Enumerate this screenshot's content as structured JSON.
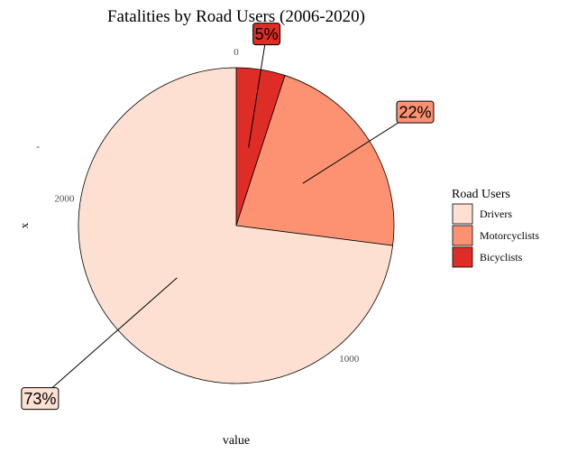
{
  "chart_data": {
    "type": "pie",
    "title": "Fatalities by Road Users (2006-2020)",
    "xlabel": "value",
    "ylabel": "x",
    "y_tick_label": "-",
    "radial_ticks": [
      {
        "value": 0,
        "label": "0"
      },
      {
        "value": 1000,
        "label": "1000"
      },
      {
        "value": 2000,
        "label": "2000"
      }
    ],
    "total": 2580,
    "slices": [
      {
        "name": "Bicyclists",
        "value": 129,
        "label": "5%",
        "color": "#de2d26"
      },
      {
        "name": "Motorcyclists",
        "value": 568,
        "label": "22%",
        "color": "#fc9272"
      },
      {
        "name": "Drivers",
        "value": 1883,
        "label": "73%",
        "color": "#fee0d2"
      }
    ],
    "legend": {
      "title": "Road Users",
      "position": "right",
      "entries": [
        {
          "label": "Drivers",
          "color": "#fee0d2"
        },
        {
          "label": "Motorcyclists",
          "color": "#fc9272"
        },
        {
          "label": "Bicyclists",
          "color": "#de2d26"
        }
      ]
    }
  }
}
